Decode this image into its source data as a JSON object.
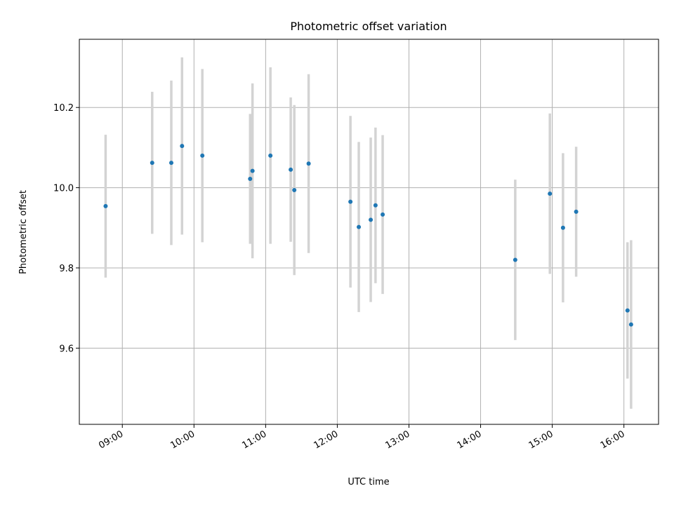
{
  "chart_data": {
    "type": "scatter",
    "title": "Photometric offset variation",
    "xlabel": "UTC time",
    "ylabel": "Photometric offset",
    "xlim": [
      "08:24",
      "16:29"
    ],
    "ylim": [
      9.41,
      10.37
    ],
    "xticks": [
      "09:00",
      "10:00",
      "11:00",
      "12:00",
      "13:00",
      "14:00",
      "15:00",
      "16:00"
    ],
    "yticks": [
      9.6,
      9.8,
      10.0,
      10.2
    ],
    "ytick_labels": [
      "9.6",
      "9.8",
      "10.0",
      "10.2"
    ],
    "grid": true,
    "marker_color": "#1f77b4",
    "errorbar_color": "#d3d3d3",
    "series": [
      {
        "points": [
          {
            "x": "08:46",
            "y": 9.954,
            "err": 0.178
          },
          {
            "x": "09:25",
            "y": 10.062,
            "err": 0.177
          },
          {
            "x": "09:41",
            "y": 10.062,
            "err": 0.205
          },
          {
            "x": "09:50",
            "y": 10.104,
            "err": 0.221
          },
          {
            "x": "10:07",
            "y": 10.08,
            "err": 0.216
          },
          {
            "x": "10:47",
            "y": 10.022,
            "err": 0.162
          },
          {
            "x": "10:49",
            "y": 10.042,
            "err": 0.218
          },
          {
            "x": "11:04",
            "y": 10.08,
            "err": 0.22
          },
          {
            "x": "11:21",
            "y": 10.045,
            "err": 0.18
          },
          {
            "x": "11:24",
            "y": 9.994,
            "err": 0.212
          },
          {
            "x": "11:36",
            "y": 10.06,
            "err": 0.223
          },
          {
            "x": "12:11",
            "y": 9.965,
            "err": 0.214
          },
          {
            "x": "12:18",
            "y": 9.902,
            "err": 0.212
          },
          {
            "x": "12:28",
            "y": 9.92,
            "err": 0.205
          },
          {
            "x": "12:32",
            "y": 9.956,
            "err": 0.194
          },
          {
            "x": "12:38",
            "y": 9.933,
            "err": 0.198
          },
          {
            "x": "14:29",
            "y": 9.82,
            "err": 0.2
          },
          {
            "x": "14:58",
            "y": 9.985,
            "err": 0.2
          },
          {
            "x": "15:09",
            "y": 9.9,
            "err": 0.186
          },
          {
            "x": "15:20",
            "y": 9.94,
            "err": 0.162
          },
          {
            "x": "16:03",
            "y": 9.694,
            "err": 0.17
          },
          {
            "x": "16:06",
            "y": 9.659,
            "err": 0.21
          }
        ]
      }
    ]
  }
}
